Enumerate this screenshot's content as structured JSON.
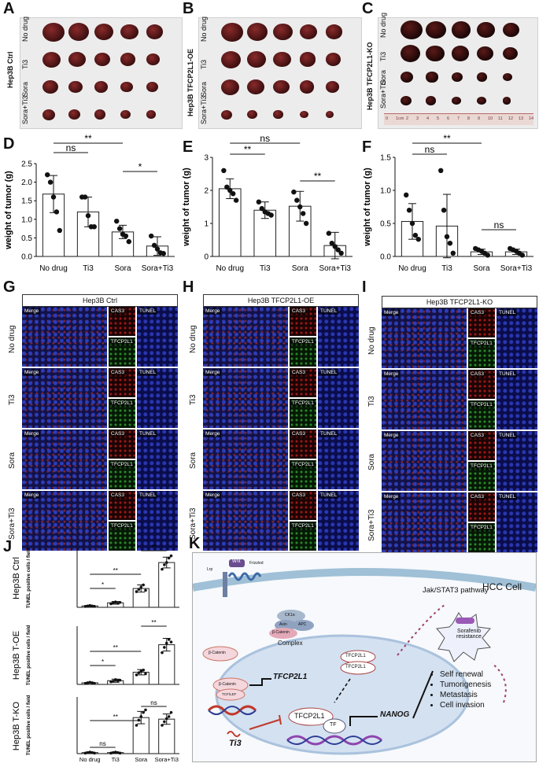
{
  "panels": {
    "A": {
      "label": "A",
      "line": "Hep3B Ctrl",
      "rows": [
        "No drug",
        "Ti3",
        "Sora",
        "Sora+Ti3"
      ]
    },
    "B": {
      "label": "B",
      "line": "Hep3B TFCP2L1-OE",
      "rows": [
        "No drug",
        "Ti3",
        "Sora",
        "Sora+Ti3"
      ]
    },
    "C": {
      "label": "C",
      "line": "Hep3B TFCP2L1-KO",
      "rows": [
        "No drug",
        "Ti3",
        "Sora",
        "Sora+Ti3"
      ],
      "ruler": [
        "0",
        "1cm",
        "2",
        "3",
        "4",
        "5",
        "6",
        "7",
        "8",
        "9",
        "10",
        "11",
        "12",
        "13",
        "14"
      ]
    },
    "D": {
      "label": "D"
    },
    "E": {
      "label": "E"
    },
    "F": {
      "label": "F"
    },
    "G": {
      "label": "G",
      "header": "Hep3B Ctrl"
    },
    "H": {
      "label": "H",
      "header": "Hep3B TFCP2L1-OE"
    },
    "I": {
      "label": "I",
      "header": "Hep3B TFCP2L1-KO"
    },
    "J": {
      "label": "J"
    },
    "K": {
      "label": "K"
    }
  },
  "if_rows": [
    "No drug",
    "Ti3",
    "Sora",
    "Sora+Ti3"
  ],
  "if_labels": {
    "merge": "Merge",
    "cas3": "CAS3",
    "tfcp2l1": "TFCP2L1",
    "tunel": "TUNEL"
  },
  "colors": {
    "bar_edge": "#222222",
    "dot": "#111111",
    "merge_bg": "#12124a",
    "cas3_bg": "#1b0404",
    "tfcp_bg": "#061806",
    "schema_bg": "#f7f9fc",
    "ti3_red": "#c0392b"
  },
  "chart_data": [
    {
      "id": "D",
      "type": "bar",
      "categories": [
        "No drug",
        "Ti3",
        "Sora",
        "Sora+Ti3"
      ],
      "values": [
        1.68,
        1.2,
        0.66,
        0.28
      ],
      "errors": [
        0.5,
        0.4,
        0.18,
        0.25
      ],
      "points": [
        [
          2.2,
          2.0,
          1.6,
          1.2,
          0.7
        ],
        [
          1.6,
          1.6,
          1.1,
          0.8,
          0.8
        ],
        [
          0.95,
          0.75,
          0.6,
          0.55,
          0.4
        ],
        [
          0.55,
          0.3,
          0.2,
          0.1,
          0.08
        ]
      ],
      "ylabel": "weight of tumor (g)",
      "ylim": [
        0,
        2.5
      ],
      "yticks": [
        "0.0",
        "0.5",
        "1.0",
        "1.5",
        "2.0",
        "2.5"
      ],
      "annotations": [
        {
          "from": 0,
          "to": 1,
          "text": "ns"
        },
        {
          "from": 0,
          "to": 2,
          "text": "**"
        },
        {
          "from": 2,
          "to": 3,
          "text": "*"
        }
      ]
    },
    {
      "id": "E",
      "type": "bar",
      "categories": [
        "No drug",
        "Ti3",
        "Sora",
        "Sora+Ti3"
      ],
      "values": [
        2.05,
        1.4,
        1.52,
        0.33
      ],
      "errors": [
        0.3,
        0.25,
        0.45,
        0.4
      ],
      "points": [
        [
          2.6,
          2.1,
          2.0,
          1.9,
          1.7
        ],
        [
          1.65,
          1.45,
          1.35,
          1.3,
          1.25
        ],
        [
          1.95,
          1.7,
          1.5,
          1.3,
          1.0
        ],
        [
          0.7,
          0.4,
          0.3,
          0.2,
          0.1
        ]
      ],
      "ylabel": "weight of tumor (g)",
      "ylim": [
        0,
        3
      ],
      "yticks": [
        "0",
        "1",
        "2",
        "3"
      ],
      "annotations": [
        {
          "from": 0,
          "to": 1,
          "text": "**"
        },
        {
          "from": 0,
          "to": 2,
          "text": "ns"
        },
        {
          "from": 2,
          "to": 3,
          "text": "**"
        }
      ]
    },
    {
      "id": "F",
      "type": "bar",
      "categories": [
        "No drug",
        "Ti3",
        "Sora",
        "Sora+Ti3"
      ],
      "values": [
        0.53,
        0.46,
        0.07,
        0.07
      ],
      "errors": [
        0.27,
        0.48,
        0.04,
        0.04
      ],
      "points": [
        [
          0.93,
          0.7,
          0.5,
          0.32,
          0.26
        ],
        [
          1.3,
          0.7,
          0.3,
          0.2,
          0.05
        ],
        [
          0.12,
          0.1,
          0.08,
          0.05,
          0.02
        ],
        [
          0.12,
          0.1,
          0.08,
          0.05,
          0.02
        ]
      ],
      "ylabel": "weight of tumor (g)",
      "ylim": [
        0,
        1.5
      ],
      "yticks": [
        "0.0",
        "0.5",
        "1.0",
        "1.5"
      ],
      "annotations": [
        {
          "from": 0,
          "to": 1,
          "text": "ns"
        },
        {
          "from": 0,
          "to": 2,
          "text": "**"
        },
        {
          "from": 2,
          "to": 3,
          "text": "ns"
        }
      ]
    },
    {
      "id": "J1",
      "type": "bar",
      "row_label": "Hep3B Ctrl",
      "categories": [
        "No drug",
        "Ti3",
        "Sora",
        "Sora+Ti3"
      ],
      "values": [
        3,
        10,
        42,
        100
      ],
      "errors": [
        1,
        3,
        8,
        12
      ],
      "points": [
        [
          2,
          3,
          4,
          3,
          2
        ],
        [
          8,
          10,
          12,
          9,
          11
        ],
        [
          35,
          40,
          45,
          50,
          38
        ],
        [
          85,
          95,
          100,
          110,
          115
        ]
      ],
      "ylabel": "TUNEL positive cells / field",
      "ylim": [
        0,
        130
      ],
      "annotations": [
        {
          "from": 0,
          "to": 1,
          "text": "*"
        },
        {
          "from": 0,
          "to": 2,
          "text": "**"
        },
        {
          "from": 2,
          "to": 3,
          "text": "**"
        }
      ]
    },
    {
      "id": "J2",
      "type": "bar",
      "row_label": "Hep3B T-OE",
      "categories": [
        "No drug",
        "Ti3",
        "Sora",
        "Sora+Ti3"
      ],
      "values": [
        3,
        7,
        23,
        75
      ],
      "errors": [
        1,
        3,
        5,
        12
      ],
      "points": [
        [
          2,
          3,
          4,
          3,
          2
        ],
        [
          5,
          6,
          9,
          7,
          8
        ],
        [
          18,
          22,
          25,
          27,
          20
        ],
        [
          60,
          70,
          78,
          85,
          80
        ]
      ],
      "ylabel": "TUNEL positive cells / field",
      "ylim": [
        0,
        110
      ],
      "annotations": [
        {
          "from": 0,
          "to": 1,
          "text": "*"
        },
        {
          "from": 0,
          "to": 2,
          "text": "**"
        },
        {
          "from": 2,
          "to": 3,
          "text": "**"
        }
      ]
    },
    {
      "id": "J3",
      "type": "bar",
      "row_label": "Hep3B T-KO",
      "categories": [
        "No drug",
        "Ti3",
        "Sora",
        "Sora+Ti3"
      ],
      "values": [
        2,
        2,
        70,
        67
      ],
      "errors": [
        1,
        1,
        12,
        10
      ],
      "points": [
        [
          1,
          2,
          3,
          2,
          1
        ],
        [
          1,
          2,
          3,
          2,
          1
        ],
        [
          55,
          65,
          72,
          80,
          85
        ],
        [
          55,
          62,
          68,
          72,
          80
        ]
      ],
      "ylabel": "TUNEL positive cells / field",
      "ylim": [
        0,
        110
      ],
      "annotations": [
        {
          "from": 0,
          "to": 1,
          "text": "ns"
        },
        {
          "from": 0,
          "to": 2,
          "text": "**"
        },
        {
          "from": 2,
          "to": 3,
          "text": "ns"
        }
      ]
    }
  ],
  "schema": {
    "cell": "HCC Cell",
    "pathway": "Jak/STAT3 pathway",
    "resistance": "Sorafenib resistance",
    "lrp": "Lrp",
    "wnt": "Wnt",
    "frizzled": "Frizzled",
    "ck1a": "CK1α",
    "axin": "Axin",
    "apc": "APC",
    "bcat": "β-Catenin",
    "complex": "Complex",
    "tcf": "TCF/LEF",
    "tfcp2l1": "TFCP2L1",
    "tf": "TF",
    "nanog": "NANOG",
    "ti3": "Ti3",
    "outcomes": [
      "Self renewal",
      "Tumorigenesis",
      "Metastasis",
      "Cell invasion"
    ]
  }
}
